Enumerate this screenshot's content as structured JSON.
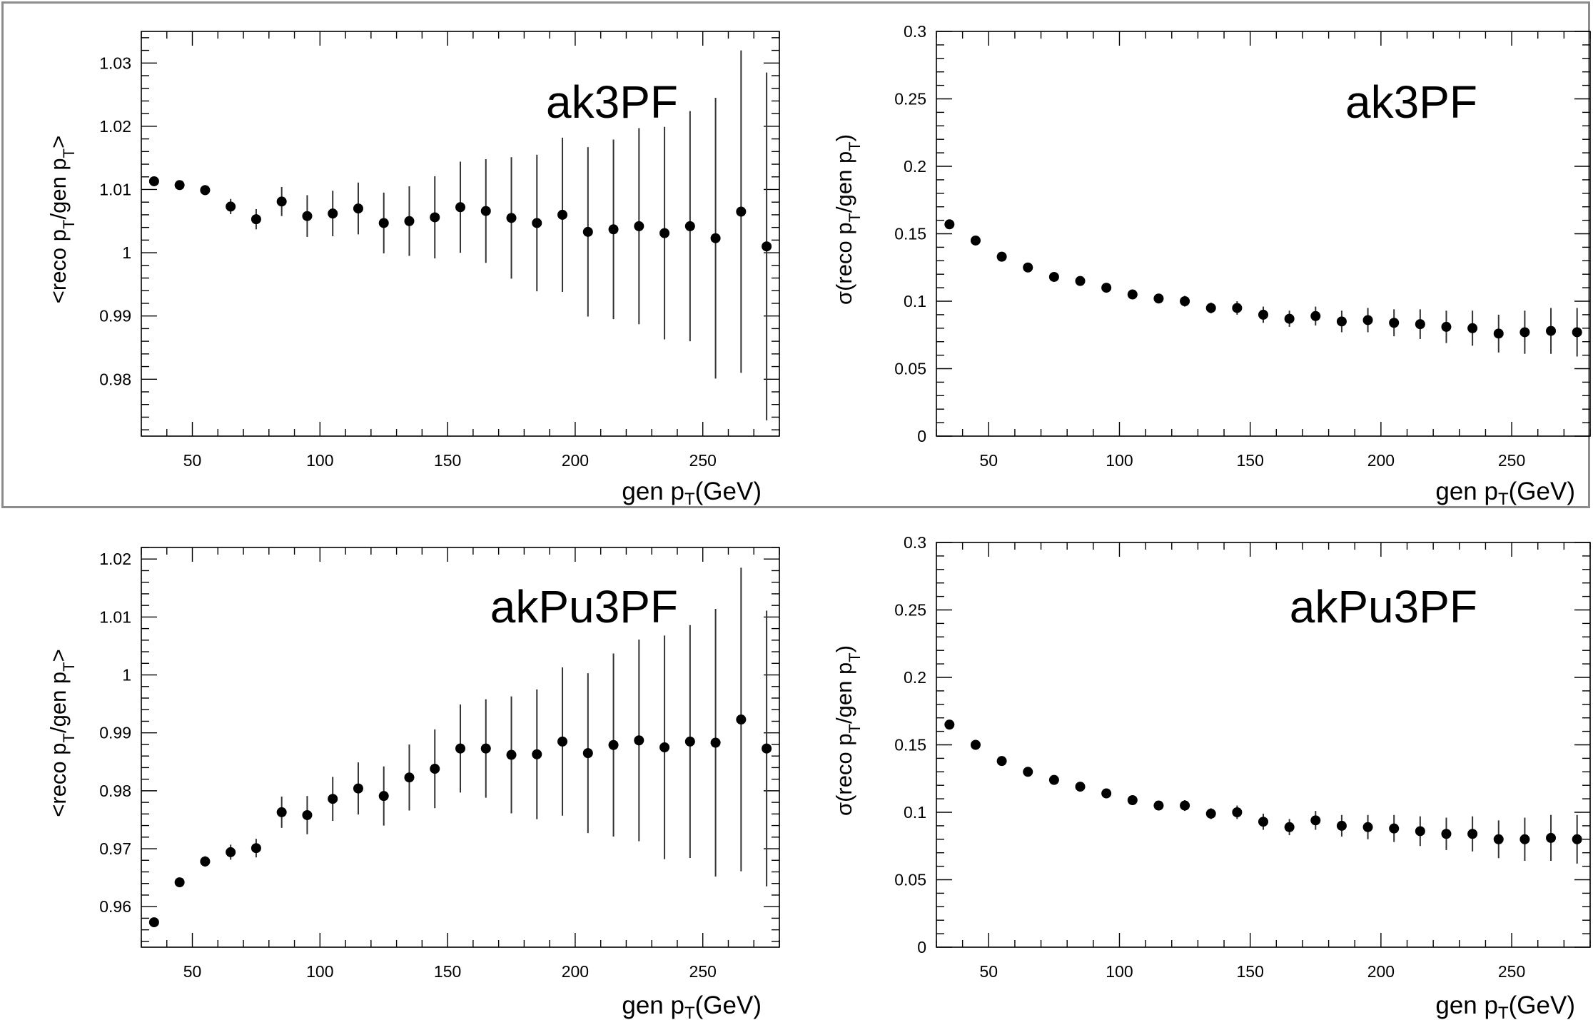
{
  "chart_data": [
    {
      "type": "scatter",
      "panel": "top-left",
      "label": "ak3PF",
      "xlabel": "gen p",
      "xlabel_sub": "T",
      "xlabel_unit": "(GeV)",
      "ylabel": "<reco p_T/gen p_T>",
      "xlim": [
        30,
        280
      ],
      "ylim": [
        0.971,
        1.035
      ],
      "xticks": [
        50,
        100,
        150,
        200,
        250
      ],
      "xtick_labels": [
        "50",
        "100",
        "150",
        "200",
        "250"
      ],
      "yticks": [
        0.98,
        0.99,
        1.0,
        1.01,
        1.02,
        1.03
      ],
      "ytick_labels": [
        "0.98",
        "0.99",
        "1",
        "1.01",
        "1.02",
        "1.03"
      ],
      "x": [
        35,
        45,
        55,
        65,
        75,
        85,
        95,
        105,
        115,
        125,
        135,
        145,
        155,
        165,
        175,
        185,
        195,
        205,
        215,
        225,
        235,
        245,
        255,
        265,
        275
      ],
      "y": [
        1.0113,
        1.0107,
        1.0099,
        1.0073,
        1.0053,
        1.0081,
        1.0058,
        1.0062,
        1.007,
        1.0047,
        1.005,
        1.0056,
        1.0072,
        1.0066,
        1.0055,
        1.0047,
        1.006,
        1.0033,
        1.0037,
        1.0042,
        1.0031,
        1.0042,
        1.0023,
        1.0065,
        1.001
      ],
      "yerr": [
        0.0007,
        0.0007,
        0.0008,
        0.0012,
        0.0016,
        0.0023,
        0.0033,
        0.0036,
        0.0041,
        0.0048,
        0.0055,
        0.0065,
        0.0072,
        0.0082,
        0.0096,
        0.0108,
        0.0122,
        0.0134,
        0.0142,
        0.0155,
        0.0168,
        0.0182,
        0.0222,
        0.0255,
        0.0275
      ]
    },
    {
      "type": "scatter",
      "panel": "top-right",
      "label": "ak3PF",
      "xlabel": "gen p",
      "xlabel_sub": "T",
      "xlabel_unit": "(GeV)",
      "ylabel": "σ(reco p_T/gen p_T)",
      "xlim": [
        30,
        280
      ],
      "ylim": [
        0,
        0.3
      ],
      "xticks": [
        50,
        100,
        150,
        200,
        250
      ],
      "xtick_labels": [
        "50",
        "100",
        "150",
        "200",
        "250"
      ],
      "yticks": [
        0,
        0.05,
        0.1,
        0.15,
        0.2,
        0.25,
        0.3
      ],
      "ytick_labels": [
        "0",
        "0.05",
        "0.1",
        "0.15",
        "0.2",
        "0.25",
        "0.3"
      ],
      "x": [
        35,
        45,
        55,
        65,
        75,
        85,
        95,
        105,
        115,
        125,
        135,
        145,
        155,
        165,
        175,
        185,
        195,
        205,
        215,
        225,
        235,
        245,
        255,
        265,
        275
      ],
      "y": [
        0.157,
        0.145,
        0.133,
        0.125,
        0.118,
        0.115,
        0.11,
        0.105,
        0.102,
        0.1,
        0.095,
        0.095,
        0.09,
        0.087,
        0.089,
        0.085,
        0.086,
        0.084,
        0.083,
        0.081,
        0.08,
        0.076,
        0.077,
        0.078,
        0.077
      ],
      "yerr": [
        0.002,
        0.002,
        0.002,
        0.002,
        0.002,
        0.002,
        0.003,
        0.003,
        0.003,
        0.004,
        0.004,
        0.005,
        0.006,
        0.006,
        0.007,
        0.008,
        0.009,
        0.01,
        0.011,
        0.012,
        0.013,
        0.014,
        0.016,
        0.017,
        0.018
      ]
    },
    {
      "type": "scatter",
      "panel": "bottom-left",
      "label": "akPu3PF",
      "xlabel": "gen p",
      "xlabel_sub": "T",
      "xlabel_unit": "(GeV)",
      "ylabel": "<reco p_T/gen p_T>",
      "xlim": [
        30,
        280
      ],
      "ylim": [
        0.953,
        1.022
      ],
      "xticks": [
        50,
        100,
        150,
        200,
        250
      ],
      "xtick_labels": [
        "50",
        "100",
        "150",
        "200",
        "250"
      ],
      "yticks": [
        0.96,
        0.97,
        0.98,
        0.99,
        1.0,
        1.01,
        1.02
      ],
      "ytick_labels": [
        "0.96",
        "0.97",
        "0.98",
        "0.99",
        "1",
        "1.01",
        "1.02"
      ],
      "x": [
        35,
        45,
        55,
        65,
        75,
        85,
        95,
        105,
        115,
        125,
        135,
        145,
        155,
        165,
        175,
        185,
        195,
        205,
        215,
        225,
        235,
        245,
        255,
        265,
        275
      ],
      "y": [
        0.9573,
        0.9642,
        0.9678,
        0.9694,
        0.9701,
        0.9763,
        0.9758,
        0.9786,
        0.9804,
        0.9791,
        0.9823,
        0.9838,
        0.9873,
        0.9873,
        0.9862,
        0.9863,
        0.9885,
        0.9865,
        0.9879,
        0.9887,
        0.9875,
        0.9885,
        0.9883,
        0.9923,
        0.9873
      ],
      "yerr": [
        0.0008,
        0.0008,
        0.0009,
        0.0013,
        0.0016,
        0.0027,
        0.0033,
        0.0038,
        0.0045,
        0.0051,
        0.0057,
        0.0068,
        0.0076,
        0.0085,
        0.0101,
        0.0112,
        0.0128,
        0.0138,
        0.0158,
        0.0174,
        0.0193,
        0.0201,
        0.0231,
        0.0262,
        0.0238
      ]
    },
    {
      "type": "scatter",
      "panel": "bottom-right",
      "label": "akPu3PF",
      "xlabel": "gen p",
      "xlabel_sub": "T",
      "xlabel_unit": "(GeV)",
      "ylabel": "σ(reco p_T/gen p_T)",
      "xlim": [
        30,
        280
      ],
      "ylim": [
        0,
        0.3
      ],
      "xticks": [
        50,
        100,
        150,
        200,
        250
      ],
      "xtick_labels": [
        "50",
        "100",
        "150",
        "200",
        "250"
      ],
      "yticks": [
        0,
        0.05,
        0.1,
        0.15,
        0.2,
        0.25,
        0.3
      ],
      "ytick_labels": [
        "0",
        "0.05",
        "0.1",
        "0.15",
        "0.2",
        "0.25",
        "0.3"
      ],
      "x": [
        35,
        45,
        55,
        65,
        75,
        85,
        95,
        105,
        115,
        125,
        135,
        145,
        155,
        165,
        175,
        185,
        195,
        205,
        215,
        225,
        235,
        245,
        255,
        265,
        275
      ],
      "y": [
        0.165,
        0.15,
        0.138,
        0.13,
        0.124,
        0.119,
        0.114,
        0.109,
        0.105,
        0.105,
        0.099,
        0.1,
        0.093,
        0.089,
        0.094,
        0.09,
        0.089,
        0.088,
        0.086,
        0.084,
        0.084,
        0.08,
        0.08,
        0.081,
        0.08
      ],
      "yerr": [
        0.002,
        0.002,
        0.002,
        0.002,
        0.002,
        0.002,
        0.003,
        0.003,
        0.003,
        0.004,
        0.004,
        0.005,
        0.006,
        0.006,
        0.007,
        0.008,
        0.009,
        0.01,
        0.011,
        0.012,
        0.013,
        0.014,
        0.016,
        0.017,
        0.018
      ]
    }
  ],
  "style": {
    "marker_color": "#000000",
    "axis_color": "#000000",
    "frame_color": "#8c8c8c"
  }
}
